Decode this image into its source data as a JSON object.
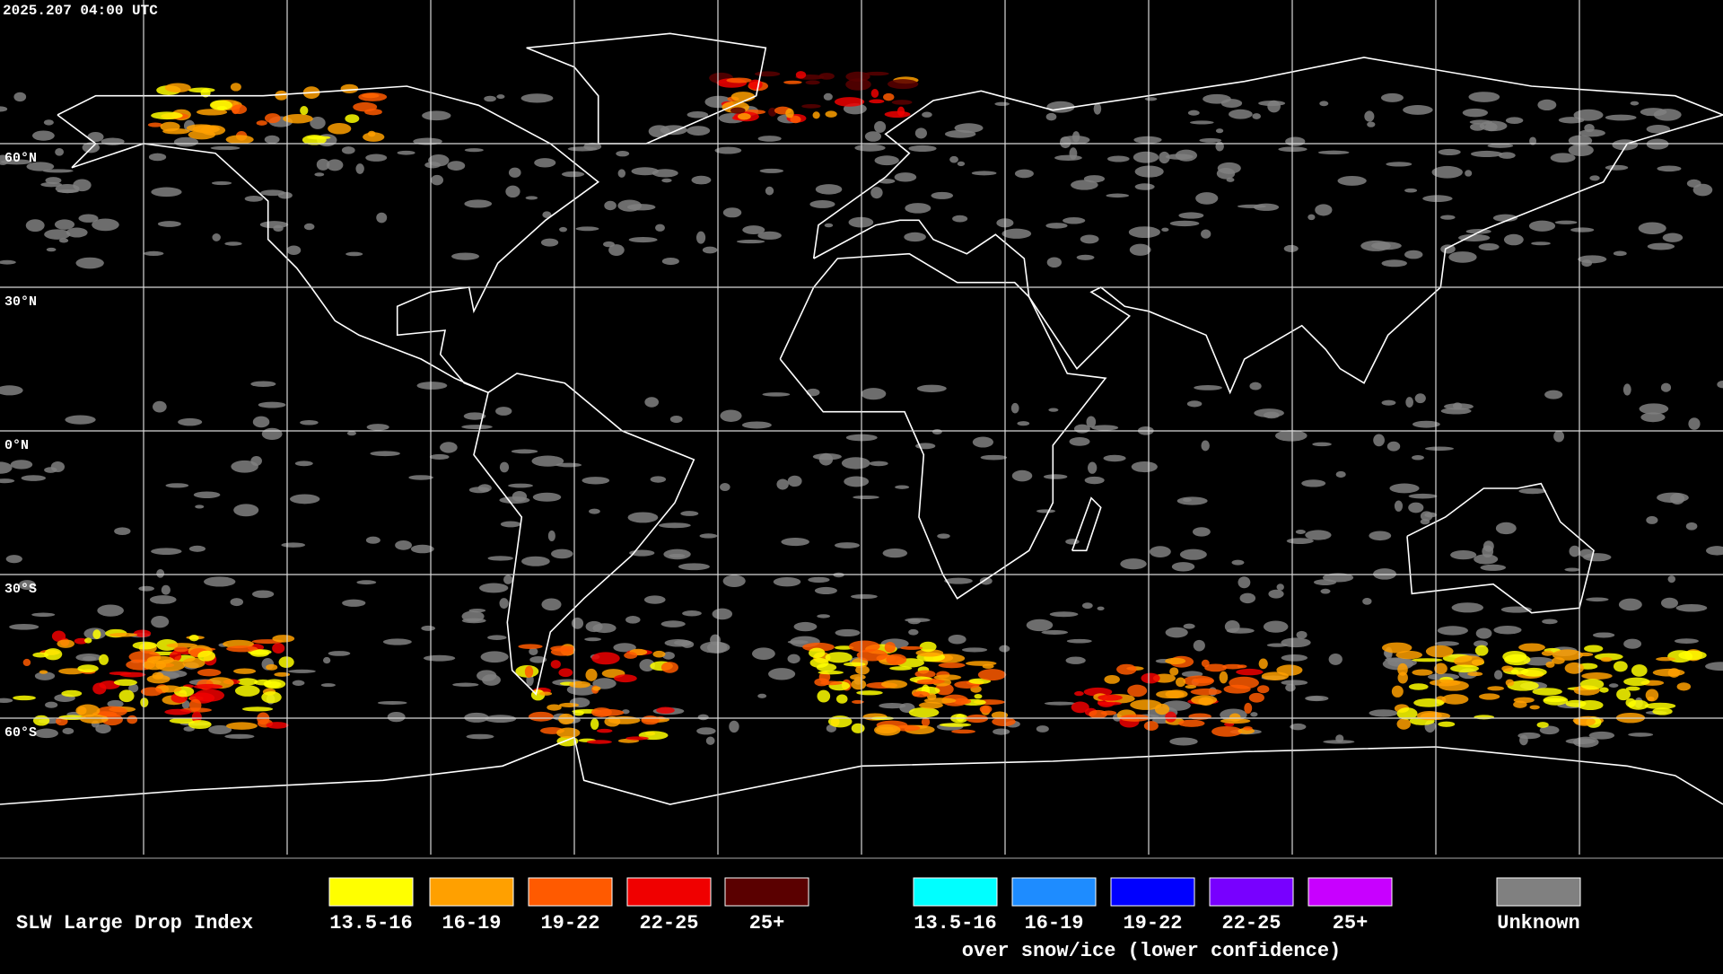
{
  "header": {
    "timestamp": "2025.207 04:00 UTC"
  },
  "map": {
    "latitude_labels": [
      "60°N",
      "30°N",
      "0°N",
      "30°S",
      "60°S"
    ]
  },
  "legend": {
    "title": "SLW Large Drop Index",
    "groups": [
      {
        "items": [
          {
            "label": "13.5-16",
            "color": "#ffff00"
          },
          {
            "label": "16-19",
            "color": "#ffa000"
          },
          {
            "label": "19-22",
            "color": "#ff5a00"
          },
          {
            "label": "22-25",
            "color": "#f00000"
          },
          {
            "label": "25+",
            "color": "#5a0000"
          }
        ]
      },
      {
        "caption": "over snow/ice (lower confidence)",
        "items": [
          {
            "label": "13.5-16",
            "color": "#00ffff"
          },
          {
            "label": "16-19",
            "color": "#1e8cff"
          },
          {
            "label": "19-22",
            "color": "#0000ff"
          },
          {
            "label": "22-25",
            "color": "#7800ff"
          },
          {
            "label": "25+",
            "color": "#c800ff"
          }
        ]
      },
      {
        "items": [
          {
            "label": "Unknown",
            "color": "#808080"
          }
        ]
      }
    ]
  }
}
